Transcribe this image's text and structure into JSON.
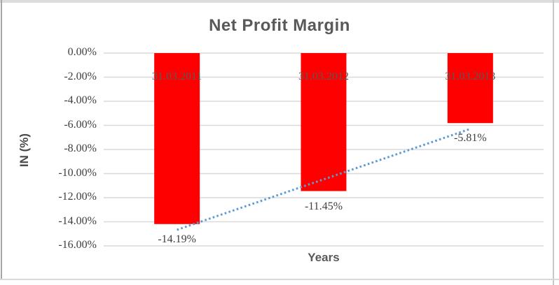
{
  "chart_data": {
    "type": "bar",
    "title": "Net Profit Margin",
    "xlabel": "Years",
    "ylabel": "IN (%)",
    "categories": [
      "31.03.2011",
      "31.03.2012",
      "31.03.2013"
    ],
    "values": [
      -14.19,
      -11.45,
      -5.81
    ],
    "data_labels": [
      "-14.19%",
      "-11.45%",
      "-5.81%"
    ],
    "y_ticks": [
      {
        "label": "0.00%",
        "value": 0
      },
      {
        "label": "-2.00%",
        "value": -2
      },
      {
        "label": "-4.00%",
        "value": -4
      },
      {
        "label": "-6.00%",
        "value": -6
      },
      {
        "label": "-8.00%",
        "value": -8
      },
      {
        "label": "-10.00%",
        "value": -10
      },
      {
        "label": "-12.00%",
        "value": -12
      },
      {
        "label": "-14.00%",
        "value": -14
      },
      {
        "label": "-16.00%",
        "value": -16
      }
    ],
    "ylim": [
      -16,
      0
    ],
    "grid": true,
    "legend": false,
    "category_label_position_value": -2,
    "trendline": {
      "type": "linear",
      "style": "dotted",
      "start_value": -14.67,
      "end_value": -6.29
    }
  },
  "colors": {
    "bar": "#ff0000",
    "trendline": "#5b9bd5",
    "gridline": "#d9d9d9",
    "title_text": "#595959",
    "tick_text": "#3f3f3f",
    "category_text": "#595959"
  }
}
